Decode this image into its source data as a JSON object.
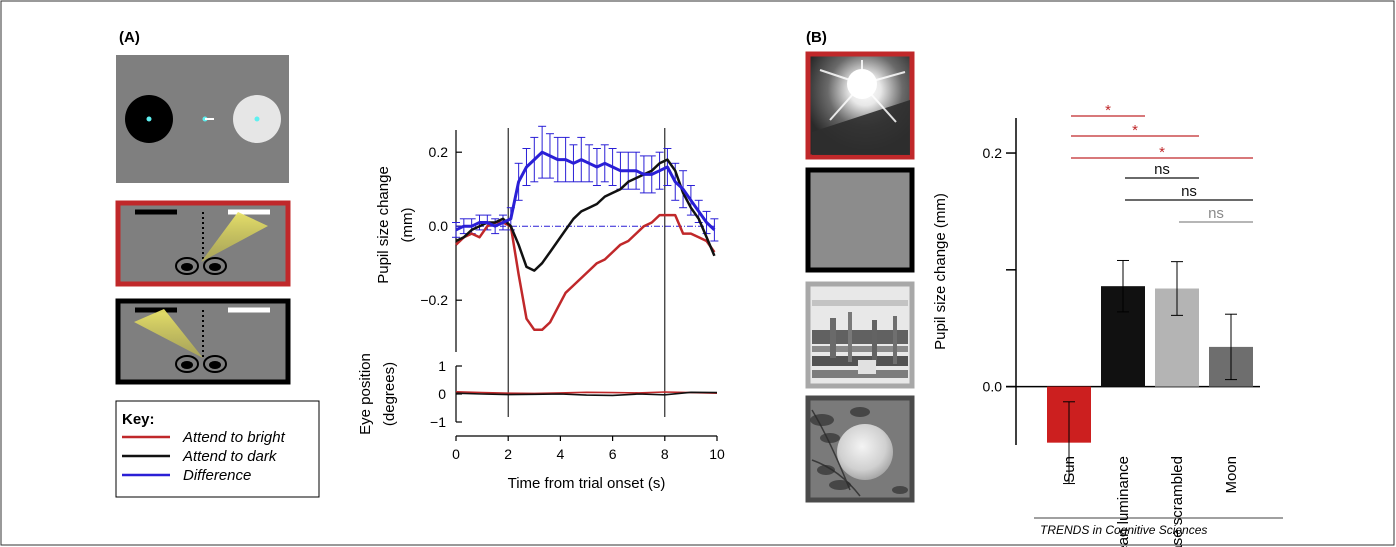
{
  "colors": {
    "bright": "#c0282a",
    "dark": "#111111",
    "difference": "#2a1fd6",
    "stimulus_gray": "#7f7f7f",
    "sun_bar": "#cc1f1f",
    "mean_bar": "#111111",
    "phase_bar": "#b4b4b4",
    "moon_bar": "#6e6e6e",
    "ns_light": "#8a8a8a"
  },
  "panel_a": {
    "label": "(A)",
    "key": {
      "title": "Key:",
      "items": [
        {
          "label": "Attend to bright",
          "color": "#c0282a"
        },
        {
          "label": "Attend to dark",
          "color": "#111111"
        },
        {
          "label": "Difference",
          "color": "#2a1fd6"
        }
      ]
    },
    "icons": [
      "stimulus-display",
      "attend-bright-diagram",
      "attend-dark-diagram"
    ]
  },
  "panel_b": {
    "label": "(B)",
    "icons": [
      "sun-image",
      "mean-luminance-image",
      "phase-scrambled-image",
      "moon-image"
    ]
  },
  "credit": "TRENDS in Cognitive Sciences",
  "chart_data": [
    {
      "type": "line",
      "title": "",
      "xlabel": "Time from trial onset (s)",
      "ylabel": "Pupil size change (mm)",
      "xlim": [
        0,
        10
      ],
      "ylim": [
        -0.34,
        0.26
      ],
      "yticks": [
        -0.2,
        0.0,
        0.2
      ],
      "ytick_labels": [
        "−0.2",
        "0.0",
        "0.2"
      ],
      "vlines": [
        2,
        8
      ],
      "hline": 0,
      "x": [
        0,
        0.3,
        0.6,
        0.9,
        1.2,
        1.5,
        1.8,
        2.1,
        2.4,
        2.7,
        3.0,
        3.3,
        3.6,
        3.9,
        4.2,
        4.5,
        4.8,
        5.1,
        5.4,
        5.7,
        6.0,
        6.3,
        6.6,
        6.9,
        7.2,
        7.5,
        7.8,
        8.1,
        8.4,
        8.7,
        9.0,
        9.3,
        9.6,
        9.9
      ],
      "series": [
        {
          "name": "Attend to bright",
          "color_key": "bright",
          "values": [
            -0.05,
            -0.03,
            -0.02,
            -0.03,
            0.0,
            0.01,
            0.01,
            0.0,
            -0.13,
            -0.25,
            -0.28,
            -0.28,
            -0.26,
            -0.22,
            -0.18,
            -0.16,
            -0.14,
            -0.12,
            -0.1,
            -0.09,
            -0.07,
            -0.05,
            -0.04,
            -0.02,
            0.0,
            0.01,
            0.03,
            0.03,
            0.03,
            -0.02,
            -0.02,
            -0.03,
            -0.04,
            -0.07
          ]
        },
        {
          "name": "Attend to dark",
          "color_key": "dark",
          "values": [
            -0.04,
            -0.03,
            -0.01,
            0.0,
            0.01,
            0.01,
            0.02,
            0.0,
            -0.05,
            -0.11,
            -0.12,
            -0.1,
            -0.07,
            -0.04,
            -0.01,
            0.02,
            0.04,
            0.05,
            0.06,
            0.08,
            0.09,
            0.1,
            0.12,
            0.13,
            0.14,
            0.15,
            0.17,
            0.18,
            0.15,
            0.09,
            0.05,
            0.02,
            -0.03,
            -0.08
          ]
        },
        {
          "name": "Difference",
          "color_key": "difference",
          "values": [
            -0.01,
            0.0,
            0.0,
            0.01,
            0.01,
            0.0,
            0.01,
            0.02,
            0.12,
            0.16,
            0.18,
            0.2,
            0.19,
            0.18,
            0.18,
            0.17,
            0.18,
            0.17,
            0.16,
            0.17,
            0.16,
            0.15,
            0.15,
            0.15,
            0.14,
            0.14,
            0.15,
            0.16,
            0.12,
            0.1,
            0.07,
            0.04,
            0.01,
            -0.01
          ],
          "errors": [
            0.02,
            0.02,
            0.02,
            0.02,
            0.02,
            0.02,
            0.02,
            0.03,
            0.05,
            0.05,
            0.06,
            0.07,
            0.06,
            0.06,
            0.06,
            0.05,
            0.06,
            0.05,
            0.05,
            0.05,
            0.05,
            0.05,
            0.05,
            0.05,
            0.05,
            0.05,
            0.05,
            0.05,
            0.05,
            0.05,
            0.04,
            0.03,
            0.03,
            0.03
          ]
        }
      ]
    },
    {
      "type": "line",
      "title": "",
      "xlabel": "",
      "ylabel": "Eye position (degrees)",
      "ylabel_lines": [
        "Eye position",
        "(degrees)"
      ],
      "xlim": [
        0,
        10
      ],
      "ylim": [
        -1,
        1
      ],
      "yticks": [
        -1,
        0,
        1
      ],
      "ytick_labels": [
        "−1",
        "0",
        "1"
      ],
      "xticks": [
        0,
        2,
        4,
        6,
        8,
        10
      ],
      "xtick_labels": [
        "0",
        "2",
        "4",
        "6",
        "8",
        "10"
      ],
      "x": [
        0,
        1,
        2,
        3,
        4,
        5,
        6,
        7,
        8,
        9,
        10
      ],
      "series": [
        {
          "name": "Attend to bright",
          "color_key": "bright",
          "values": [
            0.08,
            0.05,
            0.03,
            0.02,
            0.04,
            0.06,
            0.05,
            0.04,
            0.07,
            0.05,
            0.03
          ]
        },
        {
          "name": "Attend to dark",
          "color_key": "dark",
          "values": [
            0.03,
            0.0,
            -0.02,
            -0.01,
            0.0,
            -0.04,
            -0.05,
            0.0,
            -0.03,
            0.06,
            0.05
          ]
        }
      ]
    },
    {
      "type": "bar",
      "title": "",
      "xlabel": "",
      "ylabel": "Pupil size change (mm)",
      "ylim": [
        -0.05,
        0.23
      ],
      "yticks": [
        0.0,
        0.2
      ],
      "ytick_labels": [
        "0.0",
        "0.2"
      ],
      "categories": [
        "Sun",
        "Mean luminance",
        "Phase scrambled",
        "Moon"
      ],
      "values": [
        -0.048,
        0.086,
        0.084,
        0.034
      ],
      "errors": [
        0.035,
        0.022,
        0.023,
        0.028
      ],
      "bar_color_keys": [
        "sun_bar",
        "mean_bar",
        "phase_bar",
        "moon_bar"
      ],
      "significance": [
        {
          "from": 0,
          "to": 1,
          "label": "*",
          "color_key": "bright"
        },
        {
          "from": 0,
          "to": 2,
          "label": "*",
          "color_key": "bright"
        },
        {
          "from": 0,
          "to": 3,
          "label": "*",
          "color_key": "bright"
        },
        {
          "from": 1,
          "to": 2,
          "label": "ns",
          "color_key": "dark"
        },
        {
          "from": 1,
          "to": 3,
          "label": "ns",
          "color_key": "dark"
        },
        {
          "from": 2,
          "to": 3,
          "label": "ns",
          "color_key": "ns_light"
        }
      ]
    }
  ]
}
